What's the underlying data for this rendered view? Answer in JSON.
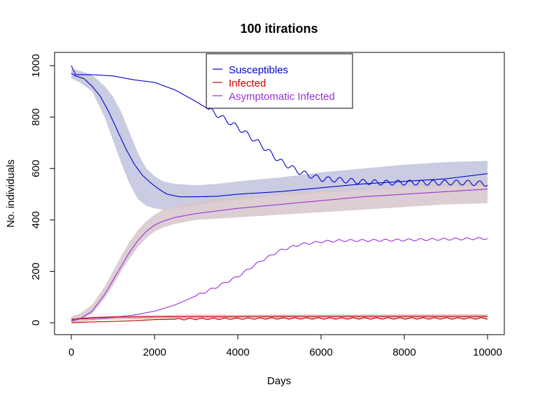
{
  "chart_data": {
    "type": "line",
    "title": "100  itirations",
    "xlabel": "Days",
    "ylabel": "No. individuals",
    "xlim": [
      0,
      10000
    ],
    "ylim": [
      0,
      1000
    ],
    "xticks": [
      0,
      2000,
      4000,
      6000,
      8000,
      10000
    ],
    "yticks": [
      0,
      200,
      400,
      600,
      800,
      1000
    ],
    "grid": false,
    "legend_position": "top-center",
    "legend": [
      {
        "label": "Susceptibles",
        "color": "#0000CD"
      },
      {
        "label": "Infected",
        "color": "#CD0000"
      },
      {
        "label": "Asymptomatic Infected",
        "color": "#9B30D6"
      }
    ],
    "bands": [
      {
        "color": "#BFC3DD",
        "x": [
          0,
          200,
          500,
          800,
          1000,
          1200,
          1400,
          1600,
          1800,
          2000,
          2200,
          2500,
          3000,
          3500,
          4000,
          5000,
          6000,
          7000,
          8000,
          9000,
          10000
        ],
        "upper": [
          990,
          980,
          965,
          920,
          880,
          820,
          740,
          660,
          600,
          570,
          550,
          540,
          535,
          540,
          550,
          565,
          585,
          600,
          615,
          625,
          630
        ],
        "lower": [
          950,
          935,
          900,
          800,
          710,
          620,
          540,
          480,
          455,
          445,
          440,
          445,
          455,
          470,
          480,
          495,
          505,
          515,
          525,
          530,
          535
        ]
      },
      {
        "color": "#D6C5CB",
        "x": [
          0,
          200,
          500,
          800,
          1000,
          1200,
          1400,
          1600,
          1800,
          2000,
          2200,
          2500,
          3000,
          3500,
          4000,
          5000,
          6000,
          7000,
          8000,
          9000,
          10000
        ],
        "upper": [
          25,
          35,
          70,
          140,
          200,
          260,
          315,
          360,
          395,
          420,
          440,
          455,
          470,
          480,
          490,
          505,
          515,
          525,
          535,
          545,
          550
        ],
        "lower": [
          5,
          10,
          35,
          95,
          145,
          200,
          250,
          295,
          330,
          355,
          370,
          385,
          400,
          405,
          410,
          420,
          430,
          440,
          450,
          460,
          465
        ]
      },
      {
        "color": "#E6B8BF",
        "x": [
          0,
          500,
          1000,
          2000,
          3000,
          4000,
          5000,
          6000,
          7000,
          8000,
          9000,
          10000
        ],
        "upper": [
          15,
          24,
          28,
          30,
          31,
          31,
          32,
          32,
          32,
          33,
          33,
          33
        ],
        "lower": [
          0,
          8,
          12,
          14,
          14,
          15,
          15,
          15,
          15,
          16,
          16,
          16
        ]
      }
    ],
    "series": [
      {
        "name": "Susceptibles",
        "color": "#0000CD",
        "oscillation": {
          "amplitude": 0,
          "period": 400,
          "from_x": 0
        },
        "x": [
          0,
          100,
          300,
          500,
          700,
          900,
          1100,
          1300,
          1500,
          1700,
          1900,
          2100,
          2300,
          2600,
          3000,
          3500,
          4000,
          5000,
          6000,
          7000,
          8000,
          9000,
          10000
        ],
        "y": [
          970,
          960,
          950,
          920,
          880,
          820,
          750,
          680,
          620,
          575,
          545,
          520,
          500,
          490,
          490,
          492,
          500,
          510,
          525,
          540,
          550,
          560,
          580
        ]
      },
      {
        "name": "Susceptibles",
        "color": "#0000CD",
        "oscillation": {
          "amplitude": 10,
          "period": 280,
          "from_x": 3300
        },
        "x": [
          0,
          100,
          500,
          1000,
          1500,
          2000,
          2500,
          3000,
          3500,
          4000,
          4500,
          5000,
          5500,
          6000,
          6500,
          7000,
          7500,
          8000,
          8500,
          9000,
          9500,
          10000
        ],
        "y": [
          1000,
          965,
          965,
          960,
          945,
          935,
          905,
          860,
          810,
          760,
          700,
          630,
          585,
          560,
          555,
          548,
          545,
          545,
          545,
          545,
          545,
          540
        ]
      },
      {
        "name": "Asymptomatic Infected",
        "color": "#9B30D6",
        "oscillation": {
          "amplitude": 0,
          "period": 400,
          "from_x": 0
        },
        "x": [
          0,
          200,
          500,
          800,
          1000,
          1200,
          1400,
          1600,
          1800,
          2000,
          2200,
          2500,
          3000,
          3500,
          4000,
          5000,
          6000,
          7000,
          8000,
          9000,
          10000
        ],
        "y": [
          5,
          15,
          45,
          110,
          165,
          220,
          275,
          320,
          355,
          380,
          395,
          410,
          425,
          435,
          445,
          460,
          475,
          490,
          500,
          510,
          520
        ]
      },
      {
        "name": "Asymptomatic Infected",
        "color": "#9B30D6",
        "oscillation": {
          "amplitude": 4,
          "period": 280,
          "from_x": 3000
        },
        "x": [
          0,
          500,
          1000,
          1500,
          2000,
          2500,
          3000,
          3500,
          4000,
          4500,
          5000,
          5500,
          6000,
          6500,
          7000,
          8000,
          9000,
          10000
        ],
        "y": [
          15,
          15,
          20,
          30,
          45,
          70,
          105,
          140,
          180,
          235,
          280,
          305,
          315,
          320,
          320,
          322,
          325,
          328
        ]
      },
      {
        "name": "Infected",
        "color": "#CD0000",
        "oscillation": {
          "amplitude": 0,
          "period": 400,
          "from_x": 0
        },
        "x": [
          0,
          100,
          500,
          1000,
          2000,
          3000,
          4000,
          5000,
          6000,
          7000,
          8000,
          9000,
          10000
        ],
        "y": [
          10,
          15,
          20,
          22,
          23,
          24,
          24,
          25,
          25,
          25,
          25,
          25,
          25
        ]
      },
      {
        "name": "Infected",
        "color": "#CD0000",
        "oscillation": {
          "amplitude": 3,
          "period": 280,
          "from_x": 2500
        },
        "x": [
          0,
          500,
          1000,
          1500,
          2000,
          3000,
          4000,
          5000,
          6000,
          7000,
          8000,
          9000,
          10000
        ],
        "y": [
          0,
          3,
          5,
          8,
          12,
          15,
          16,
          17,
          17,
          17,
          17,
          17,
          17
        ]
      }
    ]
  }
}
